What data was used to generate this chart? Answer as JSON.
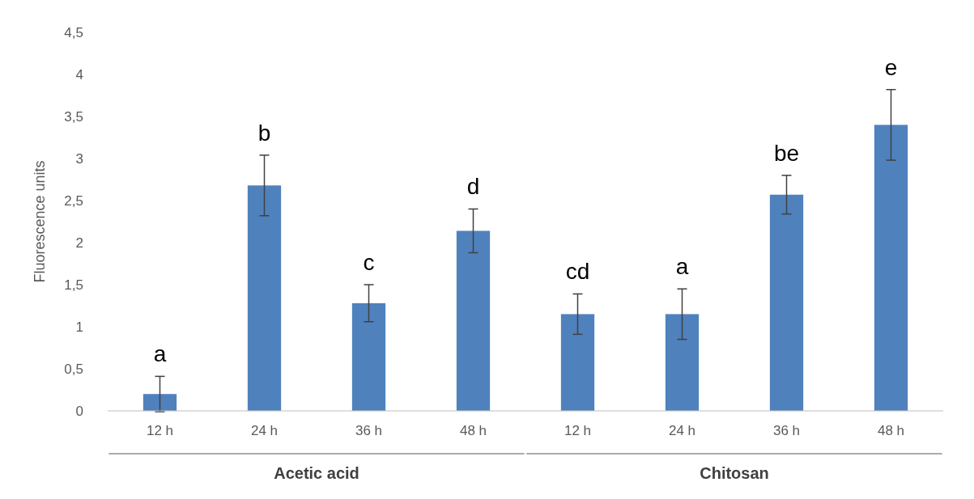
{
  "chart_data": {
    "type": "bar",
    "ylabel": "Fluorescence units",
    "categories": [
      "12 h",
      "24 h",
      "36 h",
      "48 h",
      "12 h",
      "24 h",
      "36 h",
      "48 h"
    ],
    "values": [
      0.2,
      2.68,
      1.28,
      2.14,
      1.15,
      1.15,
      2.57,
      3.4
    ],
    "errors": [
      0.21,
      0.36,
      0.22,
      0.26,
      0.24,
      0.3,
      0.23,
      0.42
    ],
    "color": "#4f81bd",
    "ylim": [
      0,
      4.5
    ],
    "yticks": [
      0,
      {
        "value": 0.5,
        "label": "0,5"
      },
      1,
      {
        "value": 1.5,
        "label": "1,5"
      },
      2,
      {
        "value": 2.5,
        "label": "2,5"
      },
      3,
      {
        "value": 3.5,
        "label": "3,5"
      },
      4,
      {
        "value": 4.5,
        "label": "4,5"
      }
    ],
    "grid": false,
    "annotations": [
      "a",
      "b",
      "c",
      "d",
      "cd",
      "a",
      "be",
      "e",
      "Acetic acid",
      "Chitosan"
    ]
  }
}
